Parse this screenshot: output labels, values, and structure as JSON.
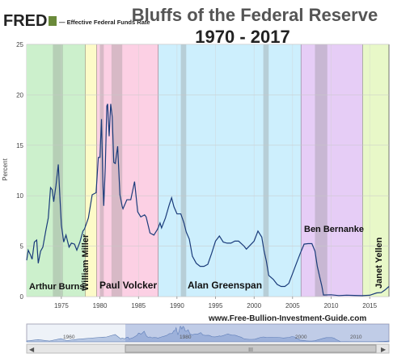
{
  "header": {
    "logo_text": "FRED",
    "series_label": "— Effective Federal Funds Rate",
    "title_line1": "Bluffs of the Federal Reserve",
    "title_line2": "1970 - 2017"
  },
  "watermark": "www.Free-Bullion-Investment-Guide.com",
  "chart_data": {
    "type": "line",
    "title": "Bluffs of the Federal Reserve 1970 - 2017",
    "ylabel": "Percent",
    "xlabel": "",
    "xlim": [
      1970.5,
      2017.5
    ],
    "ylim": [
      0,
      25
    ],
    "y_ticks": [
      0,
      5,
      10,
      15,
      20,
      25
    ],
    "x_ticks": [
      1975,
      1980,
      1985,
      1990,
      1995,
      2000,
      2005,
      2010,
      2015
    ],
    "grid": true,
    "series": [
      {
        "name": "Effective Federal Funds Rate",
        "color": "#1a3b7a",
        "points": [
          [
            1970.5,
            3.6
          ],
          [
            1970.7,
            4.6
          ],
          [
            1971.0,
            4.1
          ],
          [
            1971.2,
            3.7
          ],
          [
            1971.5,
            5.4
          ],
          [
            1971.8,
            5.6
          ],
          [
            1972.0,
            3.3
          ],
          [
            1972.3,
            4.5
          ],
          [
            1972.6,
            4.9
          ],
          [
            1973.0,
            6.6
          ],
          [
            1973.3,
            7.8
          ],
          [
            1973.6,
            10.8
          ],
          [
            1973.8,
            10.6
          ],
          [
            1974.0,
            9.4
          ],
          [
            1974.3,
            11.0
          ],
          [
            1974.6,
            13.1
          ],
          [
            1974.8,
            10.0
          ],
          [
            1975.0,
            7.1
          ],
          [
            1975.3,
            5.4
          ],
          [
            1975.6,
            6.1
          ],
          [
            1976.0,
            4.9
          ],
          [
            1976.3,
            5.3
          ],
          [
            1976.7,
            5.2
          ],
          [
            1977.0,
            4.6
          ],
          [
            1977.4,
            5.4
          ],
          [
            1977.8,
            6.5
          ],
          [
            1978.0,
            6.7
          ],
          [
            1978.5,
            7.8
          ],
          [
            1979.0,
            10.1
          ],
          [
            1979.5,
            10.3
          ],
          [
            1979.8,
            13.8
          ],
          [
            1980.0,
            13.8
          ],
          [
            1980.2,
            17.6
          ],
          [
            1980.4,
            10.9
          ],
          [
            1980.5,
            9.0
          ],
          [
            1980.7,
            12.8
          ],
          [
            1980.9,
            18.9
          ],
          [
            1981.0,
            19.1
          ],
          [
            1981.2,
            15.9
          ],
          [
            1981.4,
            19.1
          ],
          [
            1981.6,
            17.8
          ],
          [
            1981.8,
            13.3
          ],
          [
            1982.0,
            13.2
          ],
          [
            1982.3,
            14.9
          ],
          [
            1982.6,
            10.1
          ],
          [
            1982.9,
            8.9
          ],
          [
            1983.0,
            8.7
          ],
          [
            1983.5,
            9.6
          ],
          [
            1984.0,
            9.6
          ],
          [
            1984.5,
            11.4
          ],
          [
            1984.9,
            8.4
          ],
          [
            1985.3,
            7.9
          ],
          [
            1985.8,
            8.1
          ],
          [
            1986.0,
            7.9
          ],
          [
            1986.5,
            6.3
          ],
          [
            1987.0,
            6.1
          ],
          [
            1987.5,
            6.7
          ],
          [
            1987.8,
            7.3
          ],
          [
            1988.0,
            6.8
          ],
          [
            1988.5,
            7.8
          ],
          [
            1989.0,
            9.1
          ],
          [
            1989.3,
            9.8
          ],
          [
            1989.6,
            8.9
          ],
          [
            1990.0,
            8.2
          ],
          [
            1990.5,
            8.2
          ],
          [
            1990.9,
            7.3
          ],
          [
            1991.2,
            6.4
          ],
          [
            1991.6,
            5.7
          ],
          [
            1992.0,
            4.0
          ],
          [
            1992.5,
            3.3
          ],
          [
            1993.0,
            3.0
          ],
          [
            1993.5,
            3.0
          ],
          [
            1994.0,
            3.2
          ],
          [
            1994.5,
            4.3
          ],
          [
            1995.0,
            5.5
          ],
          [
            1995.5,
            6.0
          ],
          [
            1996.0,
            5.4
          ],
          [
            1996.5,
            5.3
          ],
          [
            1997.0,
            5.3
          ],
          [
            1997.5,
            5.5
          ],
          [
            1998.0,
            5.5
          ],
          [
            1998.7,
            5.0
          ],
          [
            1999.0,
            4.7
          ],
          [
            1999.5,
            5.1
          ],
          [
            2000.0,
            5.5
          ],
          [
            2000.5,
            6.5
          ],
          [
            2001.0,
            5.9
          ],
          [
            2001.3,
            4.5
          ],
          [
            2001.6,
            3.5
          ],
          [
            2001.9,
            2.1
          ],
          [
            2002.5,
            1.7
          ],
          [
            2003.0,
            1.2
          ],
          [
            2003.5,
            1.0
          ],
          [
            2004.0,
            1.0
          ],
          [
            2004.5,
            1.3
          ],
          [
            2005.0,
            2.3
          ],
          [
            2005.5,
            3.3
          ],
          [
            2006.0,
            4.3
          ],
          [
            2006.5,
            5.2
          ],
          [
            2007.0,
            5.25
          ],
          [
            2007.5,
            5.25
          ],
          [
            2007.9,
            4.5
          ],
          [
            2008.2,
            3.0
          ],
          [
            2008.5,
            2.0
          ],
          [
            2008.8,
            1.0
          ],
          [
            2009.0,
            0.15
          ],
          [
            2010.0,
            0.18
          ],
          [
            2011.0,
            0.1
          ],
          [
            2012.0,
            0.14
          ],
          [
            2013.0,
            0.11
          ],
          [
            2014.0,
            0.09
          ],
          [
            2015.0,
            0.13
          ],
          [
            2015.9,
            0.36
          ],
          [
            2016.5,
            0.39
          ],
          [
            2017.0,
            0.66
          ],
          [
            2017.5,
            1.0
          ]
        ]
      }
    ],
    "eras": [
      {
        "label": "Arthur Burns",
        "start": 1970.5,
        "end": 1978.1,
        "color": "#ccf0cc"
      },
      {
        "label": "William Miller",
        "start": 1978.1,
        "end": 1979.6,
        "color": "#fdfbc8"
      },
      {
        "label": "Paul Volcker",
        "start": 1979.6,
        "end": 1987.6,
        "color": "#fcd0e4"
      },
      {
        "label": "Alan Greenspan",
        "start": 1987.6,
        "end": 2006.1,
        "color": "#cdeffd"
      },
      {
        "label": "Ben Bernanke",
        "start": 2006.1,
        "end": 2014.1,
        "color": "#e6cdf6"
      },
      {
        "label": "Janet Yellen",
        "start": 2014.1,
        "end": 2017.5,
        "color": "#e8f8c8"
      }
    ],
    "recessions": [
      [
        1973.9,
        1975.2
      ],
      [
        1980.0,
        1980.5
      ],
      [
        1981.5,
        1982.9
      ],
      [
        1990.5,
        1991.2
      ],
      [
        2001.2,
        2001.9
      ],
      [
        2007.9,
        2009.5
      ]
    ]
  },
  "navigator": {
    "ticks": [
      "1960",
      "1980",
      "2000",
      "2010"
    ],
    "left_arrow": "◀",
    "right_arrow": "▶",
    "thumb_glyph": "III"
  }
}
